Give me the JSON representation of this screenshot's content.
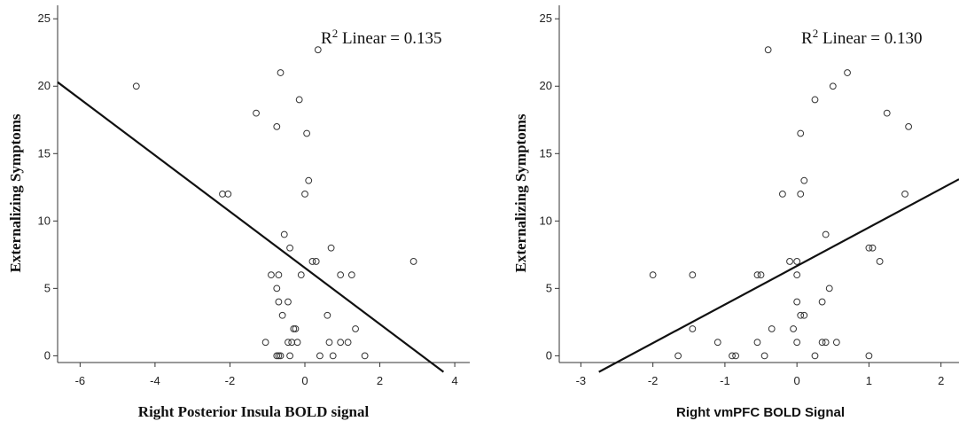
{
  "chart_data": [
    {
      "type": "scatter",
      "title": "",
      "xlabel": "Right Posterior Insula BOLD signal",
      "ylabel": "Externalizing Symptoms",
      "annotation": {
        "prefix": "R",
        "sup": "2",
        "suffix": " Linear = 0.135"
      },
      "xlim": [
        -6.6,
        4.4
      ],
      "ylim": [
        -0.5,
        26
      ],
      "xticks": [
        -6,
        -4,
        -2,
        0,
        2,
        4
      ],
      "xtick_labels": [
        "-6",
        "-4",
        "-2",
        "0",
        "2",
        "4"
      ],
      "yticks": [
        0,
        5,
        10,
        15,
        20,
        25
      ],
      "ytick_labels": [
        "0",
        "5",
        "10",
        "15",
        "20",
        "25"
      ],
      "fit_line": {
        "x": [
          -6.6,
          3.7
        ],
        "y": [
          20.3,
          -1.2
        ]
      },
      "points": [
        [
          -4.5,
          20
        ],
        [
          0.35,
          22.7
        ],
        [
          -0.65,
          21
        ],
        [
          -0.15,
          19
        ],
        [
          -1.3,
          18
        ],
        [
          -0.75,
          17
        ],
        [
          0.05,
          16.5
        ],
        [
          -2.2,
          12
        ],
        [
          -2.05,
          12
        ],
        [
          0.1,
          13
        ],
        [
          0,
          12
        ],
        [
          -0.55,
          9
        ],
        [
          -0.4,
          8
        ],
        [
          0.7,
          8
        ],
        [
          0.2,
          7
        ],
        [
          0.3,
          7
        ],
        [
          2.9,
          7
        ],
        [
          -0.9,
          6
        ],
        [
          -0.7,
          6
        ],
        [
          -0.1,
          6
        ],
        [
          0.95,
          6
        ],
        [
          1.25,
          6
        ],
        [
          -0.75,
          5
        ],
        [
          -0.7,
          4
        ],
        [
          -0.45,
          4
        ],
        [
          -0.6,
          3
        ],
        [
          0.6,
          3
        ],
        [
          -0.3,
          2
        ],
        [
          -0.25,
          2
        ],
        [
          1.35,
          2
        ],
        [
          -1.05,
          1
        ],
        [
          -0.45,
          1
        ],
        [
          -0.35,
          1
        ],
        [
          -0.2,
          1
        ],
        [
          0.65,
          1
        ],
        [
          0.95,
          1
        ],
        [
          1.15,
          1
        ],
        [
          -0.75,
          0
        ],
        [
          -0.7,
          0
        ],
        [
          -0.65,
          0
        ],
        [
          -0.4,
          0
        ],
        [
          0.4,
          0
        ],
        [
          0.75,
          0
        ],
        [
          1.6,
          0
        ]
      ]
    },
    {
      "type": "scatter",
      "title": "",
      "xlabel": "Right vmPFC BOLD Signal",
      "ylabel": "Externalizing Symptoms",
      "annotation": {
        "prefix": "R",
        "sup": "2",
        "suffix": " Linear = 0.130"
      },
      "xlim": [
        -3.3,
        2.25
      ],
      "ylim": [
        -0.5,
        26
      ],
      "xticks": [
        -3,
        -2,
        -1,
        0,
        1,
        2
      ],
      "xtick_labels": [
        "-3",
        "-2",
        "-1",
        "0",
        "1",
        "2"
      ],
      "yticks": [
        0,
        5,
        10,
        15,
        20,
        25
      ],
      "ytick_labels": [
        "0",
        "5",
        "10",
        "15",
        "20",
        "25"
      ],
      "fit_line": {
        "x": [
          -2.75,
          2.25
        ],
        "y": [
          -1.2,
          13.1
        ]
      },
      "points": [
        [
          -0.4,
          22.7
        ],
        [
          0.7,
          21
        ],
        [
          0.5,
          20
        ],
        [
          0.25,
          19
        ],
        [
          1.25,
          18
        ],
        [
          1.55,
          17
        ],
        [
          0.05,
          16.5
        ],
        [
          0.1,
          13
        ],
        [
          -0.2,
          12
        ],
        [
          0.05,
          12
        ],
        [
          1.5,
          12
        ],
        [
          0.4,
          9
        ],
        [
          1.0,
          8
        ],
        [
          1.05,
          8
        ],
        [
          -0.1,
          7
        ],
        [
          0,
          7
        ],
        [
          1.15,
          7
        ],
        [
          -2.0,
          6
        ],
        [
          -1.45,
          6
        ],
        [
          -0.55,
          6
        ],
        [
          -0.5,
          6
        ],
        [
          0,
          6
        ],
        [
          0.45,
          5
        ],
        [
          0,
          4
        ],
        [
          0.35,
          4
        ],
        [
          0.05,
          3
        ],
        [
          0.1,
          3
        ],
        [
          -1.45,
          2
        ],
        [
          -0.35,
          2
        ],
        [
          -0.05,
          2
        ],
        [
          -1.1,
          1
        ],
        [
          -0.55,
          1
        ],
        [
          0,
          1
        ],
        [
          0.35,
          1
        ],
        [
          0.4,
          1
        ],
        [
          0.55,
          1
        ],
        [
          -1.65,
          0
        ],
        [
          -0.9,
          0
        ],
        [
          -0.85,
          0
        ],
        [
          -0.45,
          0
        ],
        [
          0.25,
          0
        ],
        [
          1.0,
          0
        ]
      ]
    }
  ]
}
